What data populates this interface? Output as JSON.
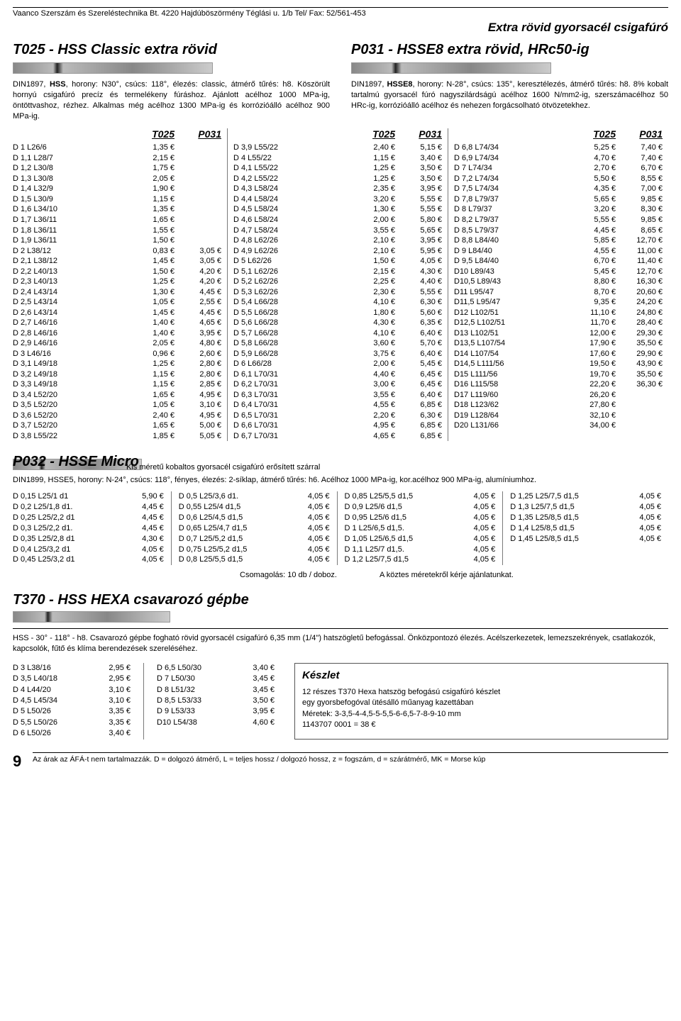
{
  "header": {
    "company": "Vaanco Szerszám és Szereléstechnika Bt. 4220 Hajdúböszörmény Téglási u. 1/b Tel/ Fax: 52/561-453",
    "extra_title": "Extra rövid gyorsacél csigafúró"
  },
  "t025": {
    "title": "T025  -  HSS Classic extra rövid",
    "desc": "DIN1897, <b>HSS</b>, horony: N30°, csúcs: 118°, élezés: classic, átmérő tűrés: h8. Köszörült hornyú csigafúró precíz és termelékeny fúráshoz. Ajánlott acélhoz 1000 MPa-ig, öntöttvashoz, rézhez. Alkalmas még acélhoz 1300 MPa-ig és korrózióálló acélhoz 900 MPa-ig."
  },
  "p031": {
    "title": "P031  -  HSSE8 extra rövid, HRc50-ig",
    "desc": "DIN1897, <b>HSSE8</b>, horony: N-28°, csúcs: 135°, keresztélezés, átmérő tűrés: h8. 8% kobalt tartalmú gyorsacél fúró nagyszilárdságú acélhoz 1600 N/mm2-ig, szerszámacélhoz 50 HRc-ig, korrózióálló acélhoz és nehezen forgácsolható ötvözetekhez."
  },
  "price_headers": {
    "c1": "T025",
    "c2": "P031"
  },
  "prices": {
    "col1": [
      [
        "D 1 L26/6",
        "1,35 €",
        ""
      ],
      [
        "D 1,1 L28/7",
        "2,15 €",
        ""
      ],
      [
        "D 1,2 L30/8",
        "1,75 €",
        ""
      ],
      [
        "D 1,3 L30/8",
        "2,05 €",
        ""
      ],
      [
        "D 1,4 L32/9",
        "1,90 €",
        ""
      ],
      [
        "D 1,5 L30/9",
        "1,15 €",
        ""
      ],
      [
        "D 1,6 L34/10",
        "1,35 €",
        ""
      ],
      [
        "D 1,7 L36/11",
        "1,65 €",
        ""
      ],
      [
        "D 1,8 L36/11",
        "1,55 €",
        ""
      ],
      [
        "D 1,9 L36/11",
        "1,50 €",
        ""
      ],
      [
        "D 2 L38/12",
        "0,83 €",
        "3,05 €"
      ],
      [
        "D 2,1 L38/12",
        "1,45 €",
        "3,05 €"
      ],
      [
        "D 2,2 L40/13",
        "1,50 €",
        "4,20 €"
      ],
      [
        "D 2,3 L40/13",
        "1,25 €",
        "4,20 €"
      ],
      [
        "D 2,4 L43/14",
        "1,30 €",
        "4,45 €"
      ],
      [
        "D 2,5 L43/14",
        "1,05 €",
        "2,55 €"
      ],
      [
        "D 2,6 L43/14",
        "1,45 €",
        "4,45 €"
      ],
      [
        "D 2,7 L46/16",
        "1,40 €",
        "4,65 €"
      ],
      [
        "D 2,8 L46/16",
        "1,40 €",
        "3,95 €"
      ],
      [
        "D 2,9 L46/16",
        "2,05 €",
        "4,80 €"
      ],
      [
        "D 3 L46/16",
        "0,96 €",
        "2,60 €"
      ],
      [
        "D 3,1 L49/18",
        "1,25 €",
        "2,80 €"
      ],
      [
        "D 3,2 L49/18",
        "1,15 €",
        "2,80 €"
      ],
      [
        "D 3,3 L49/18",
        "1,15 €",
        "2,85 €"
      ],
      [
        "D 3,4 L52/20",
        "1,65 €",
        "4,95 €"
      ],
      [
        "D 3,5 L52/20",
        "1,05 €",
        "3,10 €"
      ],
      [
        "D 3,6 L52/20",
        "2,40 €",
        "4,95 €"
      ],
      [
        "D 3,7 L52/20",
        "1,65 €",
        "5,00 €"
      ],
      [
        "D 3,8 L55/22",
        "1,85 €",
        "5,05 €"
      ]
    ],
    "col2": [
      [
        "D 3,9 L55/22",
        "2,40 €",
        "5,15 €"
      ],
      [
        "D 4 L55/22",
        "1,15 €",
        "3,40 €"
      ],
      [
        "D 4,1 L55/22",
        "1,25 €",
        "3,50 €"
      ],
      [
        "D 4,2 L55/22",
        "1,25 €",
        "3,50 €"
      ],
      [
        "D 4,3 L58/24",
        "2,35 €",
        "3,95 €"
      ],
      [
        "D 4,4 L58/24",
        "3,20 €",
        "5,55 €"
      ],
      [
        "D 4,5 L58/24",
        "1,30 €",
        "5,55 €"
      ],
      [
        "D 4,6 L58/24",
        "2,00 €",
        "5,80 €"
      ],
      [
        "D 4,7 L58/24",
        "3,55 €",
        "5,65 €"
      ],
      [
        "D 4,8 L62/26",
        "2,10 €",
        "3,95 €"
      ],
      [
        "D 4,9 L62/26",
        "2,10 €",
        "5,95 €"
      ],
      [
        "D 5 L62/26",
        "1,50 €",
        "4,05 €"
      ],
      [
        "D 5,1 L62/26",
        "2,15 €",
        "4,30 €"
      ],
      [
        "D 5,2 L62/26",
        "2,25 €",
        "4,40 €"
      ],
      [
        "D 5,3 L62/26",
        "2,30 €",
        "5,55 €"
      ],
      [
        "D 5,4 L66/28",
        "4,10 €",
        "6,30 €"
      ],
      [
        "D 5,5 L66/28",
        "1,80 €",
        "5,60 €"
      ],
      [
        "D 5,6 L66/28",
        "4,30 €",
        "6,35 €"
      ],
      [
        "D 5,7 L66/28",
        "4,10 €",
        "6,40 €"
      ],
      [
        "D 5,8 L66/28",
        "3,60 €",
        "5,70 €"
      ],
      [
        "D 5,9 L66/28",
        "3,75 €",
        "6,40 €"
      ],
      [
        "D 6 L66/28",
        "2,00 €",
        "5,45 €"
      ],
      [
        "D 6,1 L70/31",
        "4,40 €",
        "6,45 €"
      ],
      [
        "D 6,2 L70/31",
        "3,00 €",
        "6,45 €"
      ],
      [
        "D 6,3 L70/31",
        "3,55 €",
        "6,40 €"
      ],
      [
        "D 6,4 L70/31",
        "4,55 €",
        "6,85 €"
      ],
      [
        "D 6,5 L70/31",
        "2,20 €",
        "6,30 €"
      ],
      [
        "D 6,6 L70/31",
        "4,95 €",
        "6,85 €"
      ],
      [
        "D 6,7 L70/31",
        "4,65 €",
        "6,85 €"
      ]
    ],
    "col3": [
      [
        "D 6,8 L74/34",
        "5,25 €",
        "7,40 €"
      ],
      [
        "D 6,9 L74/34",
        "4,70 €",
        "7,40 €"
      ],
      [
        "D 7 L74/34",
        "2,70 €",
        "6,70 €"
      ],
      [
        "D 7,2 L74/34",
        "5,50 €",
        "8,55 €"
      ],
      [
        "D 7,5 L74/34",
        "4,35 €",
        "7,00 €"
      ],
      [
        "D 7,8 L79/37",
        "5,65 €",
        "9,85 €"
      ],
      [
        "D 8 L79/37",
        "3,20 €",
        "8,30 €"
      ],
      [
        "D 8,2 L79/37",
        "5,55 €",
        "9,85 €"
      ],
      [
        "D 8,5 L79/37",
        "4,45 €",
        "8,65 €"
      ],
      [
        "D 8,8 L84/40",
        "5,85 €",
        "12,70 €"
      ],
      [
        "D 9 L84/40",
        "4,55 €",
        "11,00 €"
      ],
      [
        "D 9,5 L84/40",
        "6,70 €",
        "11,40 €"
      ],
      [
        "D10 L89/43",
        "5,45 €",
        "12,70 €"
      ],
      [
        "D10,5 L89/43",
        "8,80 €",
        "16,30 €"
      ],
      [
        "D11 L95/47",
        "8,70 €",
        "20,60 €"
      ],
      [
        "D11,5 L95/47",
        "9,35 €",
        "24,20 €"
      ],
      [
        "D12 L102/51",
        "11,10 €",
        "24,80 €"
      ],
      [
        "D12,5 L102/51",
        "11,70 €",
        "28,40 €"
      ],
      [
        "D13 L102/51",
        "12,00 €",
        "29,30 €"
      ],
      [
        "D13,5 L107/54",
        "17,90 €",
        "35,50 €"
      ],
      [
        "D14 L107/54",
        "17,60 €",
        "29,90 €"
      ],
      [
        "D14,5 L111/56",
        "19,50 €",
        "43,90 €"
      ],
      [
        "D15 L111/56",
        "19,70 €",
        "35,50 €"
      ],
      [
        "D16 L115/58",
        "22,20 €",
        "36,30 €"
      ],
      [
        "D17 L119/60",
        "26,20 €",
        ""
      ],
      [
        "D18 L123/62",
        "27,80 €",
        ""
      ],
      [
        "D19 L128/64",
        "32,10 €",
        ""
      ],
      [
        "D20 L131/66",
        "34,00 €",
        ""
      ]
    ]
  },
  "p032": {
    "title": "P032   -   HSSE Micro",
    "sub": "Kis méretű kobaltos gyorsacél csigafúró erősített szárral",
    "intro": "DIN1899, HSSE5, horony: N-24°, csúcs: 118°, fényes, élezés: 2-síklap, átmérő tűrés: h6. Acélhoz 1000 MPa-ig, kor.acélhoz 900 MPa-ig, alumíniumhoz.",
    "cols": [
      [
        [
          "D 0,15 L25/1 d1",
          "5,90 €"
        ],
        [
          "D 0,2 L25/1,8 d1.",
          "4,45 €"
        ],
        [
          "D 0,25 L25/2,2 d1",
          "4,45 €"
        ],
        [
          "D 0,3 L25/2,2 d1.",
          "4,45 €"
        ],
        [
          "D 0,35 L25/2,8 d1",
          "4,30 €"
        ],
        [
          "D 0,4 L25/3,2 d1",
          "4,05 €"
        ],
        [
          "D 0,45 L25/3,2 d1",
          "4,05 €"
        ]
      ],
      [
        [
          "D 0,5 L25/3,6 d1.",
          "4,05 €"
        ],
        [
          "D 0,55 L25/4 d1,5",
          "4,05 €"
        ],
        [
          "D 0,6 L25/4,5 d1,5",
          "4,05 €"
        ],
        [
          "D 0,65 L25/4,7 d1,5",
          "4,05 €"
        ],
        [
          "D 0,7 L25/5,2 d1,5",
          "4,05 €"
        ],
        [
          "D 0,75 L25/5,2 d1,5",
          "4,05 €"
        ],
        [
          "D 0,8 L25/5,5 d1,5",
          "4,05 €"
        ]
      ],
      [
        [
          "D 0,85 L25/5,5 d1,5",
          "4,05 €"
        ],
        [
          "D 0,9 L25/6 d1,5",
          "4,05 €"
        ],
        [
          "D 0,95 L25/6 d1,5",
          "4,05 €"
        ],
        [
          "D 1 L25/6,5 d1,5.",
          "4,05 €"
        ],
        [
          "D 1,05 L25/6,5 d1,5",
          "4,05 €"
        ],
        [
          "D 1,1 L25/7 d1,5.",
          "4,05 €"
        ],
        [
          "D 1,2 L25/7,5 d1,5",
          "4,05 €"
        ]
      ],
      [
        [
          "D 1,25 L25/7,5 d1,5",
          "4,05 €"
        ],
        [
          "D 1,3 L25/7,5 d1,5",
          "4,05 €"
        ],
        [
          "D 1,35 L25/8,5 d1,5",
          "4,05 €"
        ],
        [
          "D 1,4 L25/8,5 d1,5",
          "4,05 €"
        ],
        [
          "D 1,45 L25/8,5 d1,5",
          "4,05 €"
        ]
      ]
    ],
    "foot1": "Csomagolás: 10 db / doboz.",
    "foot2": "A köztes méretekről kérje ajánlatunkat."
  },
  "t370": {
    "title": "T370   -   HSS HEXA csavarozó gépbe",
    "desc": "HSS - 30° - 118° - h8. Csavarozó gépbe fogható rövid gyorsacél csigafúró 6,35 mm (1/4\") hatszögletű befogással. Önközpontozó élezés. Acélszerkezetek, lemezszekrények, csatlakozók, kapcsolók, fűtő és klíma berendezések szereléséhez.",
    "cols": [
      [
        [
          "D 3   L38/16",
          "2,95 €"
        ],
        [
          "D 3,5 L40/18",
          "2,95 €"
        ],
        [
          "D 4   L44/20",
          "3,10 €"
        ],
        [
          "D 4,5 L45/34",
          "3,10 €"
        ],
        [
          "D 5   L50/26",
          "3,35 €"
        ],
        [
          "D 5,5 L50/26",
          "3,35 €"
        ],
        [
          "D 6   L50/26",
          "3,40 €"
        ]
      ],
      [
        [
          "D 6,5 L50/30",
          "3,40 €"
        ],
        [
          "D 7   L50/30",
          "3,45 €"
        ],
        [
          "D 8   L51/32",
          "3,45 €"
        ],
        [
          "D 8,5 L53/33",
          "3,50 €"
        ],
        [
          "D 9   L53/33",
          "3,95 €"
        ],
        [
          "D10  L54/38",
          "4,60 €"
        ]
      ]
    ],
    "keszlet": {
      "title": "Készlet",
      "l1": "12 részes T370 Hexa hatszög befogású csigafúró készlet",
      "l2": "egy gyorsbefogóval  ütésálló műanyag kazettában",
      "l3": "Méretek:  3-3,5-4-4,5-5-5,5-6-6,5-7-8-9-10 mm",
      "l4": "1143707 0001  =  38 €"
    }
  },
  "footer": {
    "page": "9",
    "caption": "Az árak az ÁFÁ-t nem tartalmazzák.  D = dolgozó átmérő, L = teljes hossz / dolgozó hossz, z = fogszám, d = szárátmérő, MK = Morse kúp"
  }
}
